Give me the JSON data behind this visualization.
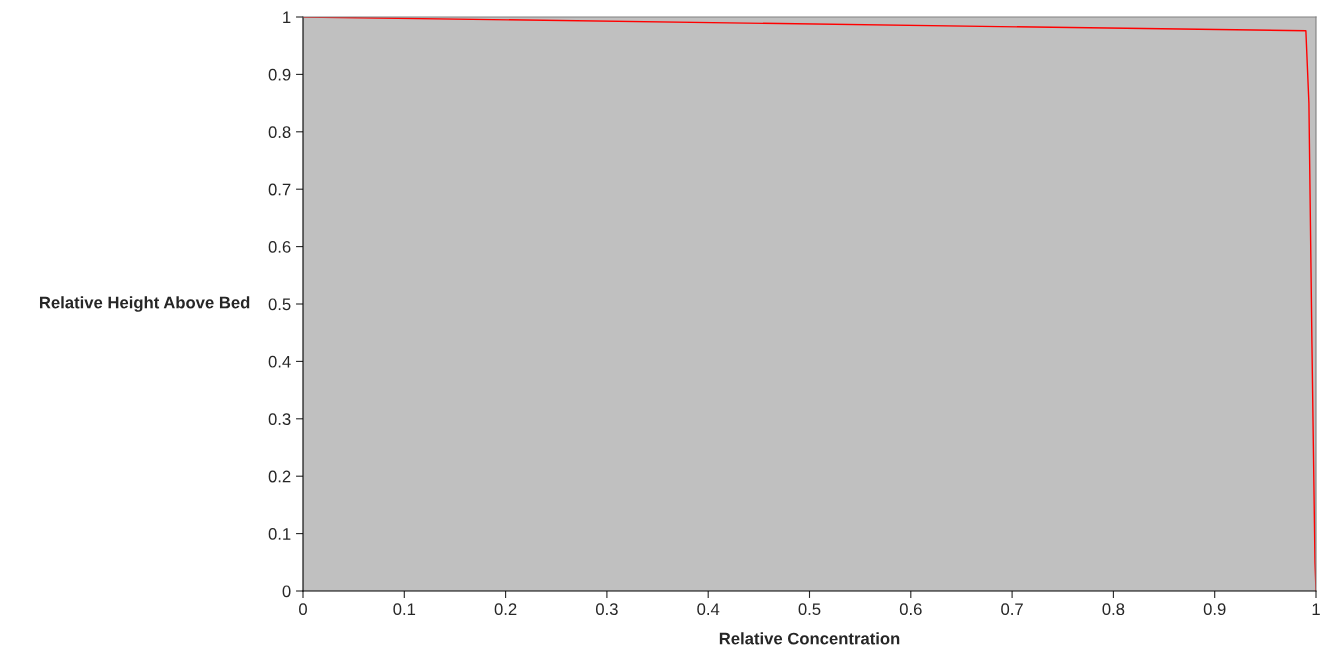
{
  "chart_data": {
    "type": "line",
    "xlabel": "Relative Concentration",
    "ylabel": "Relative Height Above Bed",
    "x": [
      0,
      0.99,
      0.993,
      0.996,
      0.999,
      1
    ],
    "series": [
      {
        "color": "#ff0000",
        "values": [
          1,
          0.976,
          0.85,
          0.43,
          0.05,
          0
        ]
      }
    ],
    "xlim": [
      0,
      1
    ],
    "ylim": [
      0,
      1
    ],
    "xticks": [
      0,
      0.1,
      0.2,
      0.3,
      0.4,
      0.5,
      0.6,
      0.7,
      0.8,
      0.9,
      1
    ],
    "yticks": [
      0,
      0.1,
      0.2,
      0.3,
      0.4,
      0.5,
      0.6,
      0.7,
      0.8,
      0.9,
      1
    ],
    "grid": false,
    "legend": false
  }
}
